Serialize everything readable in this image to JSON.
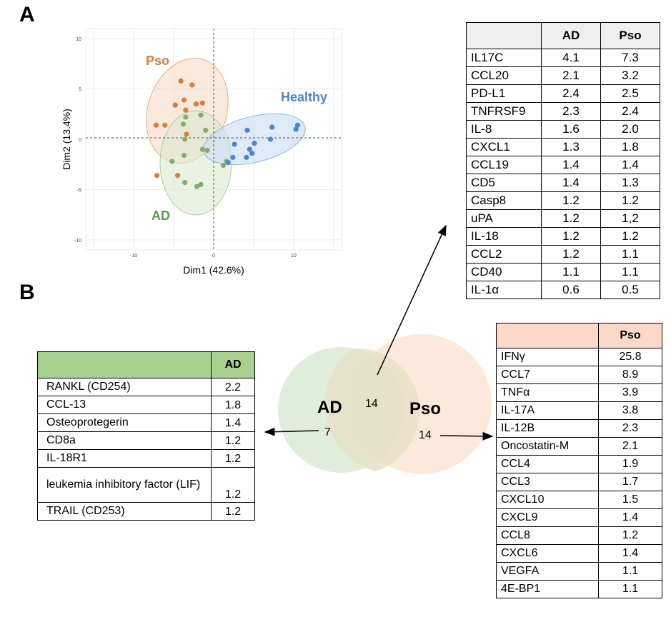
{
  "panels": {
    "a": "A",
    "b": "B"
  },
  "pca": {
    "xlabel": "Dim1 (42.6%)",
    "ylabel": "Dim2 (13.4%)",
    "xlim": [
      -16,
      16
    ],
    "ylim": [
      -11,
      11
    ],
    "xticks": [
      "-10",
      "0",
      "10"
    ],
    "yticks": [
      "10",
      "5",
      "0",
      "-5",
      "-10"
    ],
    "groups": [
      {
        "name": "Pso",
        "color": "#e07b39",
        "points": [
          [
            -4.1,
            5.8
          ],
          [
            -2.7,
            5.4
          ],
          [
            -4.8,
            3.4
          ],
          [
            -3.7,
            3.9
          ],
          [
            -3.5,
            2.9
          ],
          [
            -2.2,
            3.5
          ],
          [
            -1.4,
            3.6
          ],
          [
            -7.2,
            1.4
          ],
          [
            -6.1,
            1.4
          ],
          [
            -3.4,
            0.5
          ],
          [
            -7.1,
            -3.6
          ],
          [
            -4.5,
            -3.6
          ]
        ]
      },
      {
        "name": "AD",
        "color": "#7fb069",
        "points": [
          [
            -3.5,
            2.2
          ],
          [
            -1.6,
            2.4
          ],
          [
            -3.8,
            1.5
          ],
          [
            -1.0,
            0.9
          ],
          [
            -3.6,
            0.0
          ],
          [
            -1.4,
            -1.0
          ],
          [
            -0.8,
            -1.1
          ],
          [
            -3.7,
            -1.6
          ],
          [
            -5.2,
            -2.2
          ],
          [
            -3.6,
            -4.3
          ],
          [
            -2.1,
            -4.7
          ],
          [
            -1.6,
            -4.5
          ],
          [
            1.2,
            -2.6
          ],
          [
            1.6,
            -2.2
          ]
        ]
      },
      {
        "name": "Healthy",
        "color": "#4a86d8",
        "points": [
          [
            10.5,
            1.4
          ],
          [
            10.3,
            1.0
          ],
          [
            7.3,
            1.2
          ],
          [
            4.2,
            0.9
          ],
          [
            7.1,
            0.0
          ],
          [
            5.1,
            -0.4
          ],
          [
            2.6,
            -0.5
          ],
          [
            4.5,
            -1.0
          ],
          [
            4.8,
            -1.4
          ],
          [
            4.1,
            -1.8
          ],
          [
            2.4,
            -1.8
          ],
          [
            1.8,
            -2.3
          ]
        ]
      }
    ]
  },
  "shared_table": {
    "headers": [
      "",
      "AD",
      "Pso"
    ],
    "rows": [
      [
        "IL17C",
        "4.1",
        "7.3"
      ],
      [
        "CCL20",
        "2.1",
        "3.2"
      ],
      [
        "PD-L1",
        "2.4",
        "2.5"
      ],
      [
        "TNFRSF9",
        "2.3",
        "2.4"
      ],
      [
        "IL-8",
        "1.6",
        "2.0"
      ],
      [
        "CXCL1",
        "1.3",
        "1.8"
      ],
      [
        "CCL19",
        "1.4",
        "1.4"
      ],
      [
        "CD5",
        "1.4",
        "1.3"
      ],
      [
        "Casp8",
        "1.2",
        "1.2"
      ],
      [
        "uPA",
        "1.2",
        "1,2"
      ],
      [
        "IL-18",
        "1.2",
        "1.2"
      ],
      [
        "CCL2",
        "1.2",
        "1.1"
      ],
      [
        "CD40",
        "1.1",
        "1.1"
      ],
      [
        "IL-1α",
        "0.6",
        "0.5"
      ]
    ]
  },
  "ad_table": {
    "headers": [
      "",
      "AD"
    ],
    "rows": [
      [
        "RANKL (CD254)",
        "2.2"
      ],
      [
        "CCL-13",
        "1.8"
      ],
      [
        "Osteoprotegerin",
        "1.4"
      ],
      [
        "CD8a",
        "1.2"
      ],
      [
        "IL-18R1",
        "1.2"
      ],
      [
        "leukemia inhibitory factor (LIF)",
        "1.2"
      ],
      [
        "TRAIL (CD253)",
        "1.2"
      ]
    ]
  },
  "pso_table": {
    "headers": [
      "",
      "Pso"
    ],
    "rows": [
      [
        "IFNγ",
        "25.8"
      ],
      [
        "CCL7",
        "8.9"
      ],
      [
        "TNFα",
        "3.9"
      ],
      [
        "IL-17A",
        "3.8"
      ],
      [
        "IL-12B",
        "2.3"
      ],
      [
        "Oncostatin-M",
        "2.1"
      ],
      [
        "CCL4",
        "1.9"
      ],
      [
        "CCL3",
        "1.7"
      ],
      [
        "CXCL10",
        "1.5"
      ],
      [
        "CXCL9",
        "1.4"
      ],
      [
        "CCL8",
        "1.2"
      ],
      [
        "CXCL6",
        "1.4"
      ],
      [
        "VEGFA",
        "1.1"
      ],
      [
        "4E-BP1",
        "1.1"
      ]
    ]
  },
  "venn": {
    "ad_label": "AD",
    "pso_label": "Pso",
    "ad_only": "7",
    "shared": "14",
    "pso_only": "14",
    "ad_color": "#d9ead3",
    "pso_color": "#fbe5d6"
  }
}
